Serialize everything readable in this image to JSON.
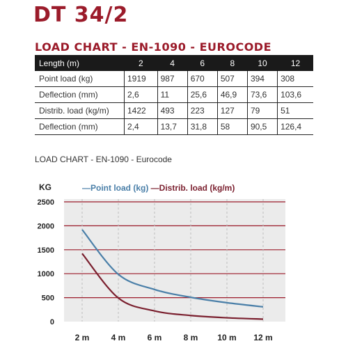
{
  "header": {
    "title": "DT 34/2",
    "subtitle": "LOAD CHART - EN-1090 - EUROCODE"
  },
  "table": {
    "columns": [
      "Length (m)",
      "2",
      "4",
      "6",
      "8",
      "10",
      "12"
    ],
    "rows": [
      [
        "Point load (kg)",
        "1919",
        "987",
        "670",
        "507",
        "394",
        "308"
      ],
      [
        "Deflection (mm)",
        "2,6",
        "11",
        "25,6",
        "46,9",
        "73,6",
        "103,6"
      ],
      [
        "Distrib. load (kg/m)",
        "1422",
        "493",
        "223",
        "127",
        "79",
        "51"
      ],
      [
        "Deflection (mm)",
        "2,4",
        "13,7",
        "31,8",
        "58",
        "90,5",
        "126,4"
      ]
    ]
  },
  "chart_caption": "LOAD CHART - EN-1090 - Eurocode",
  "colors": {
    "brand": "#9b1b2a",
    "point_series": "#4a7fa8",
    "distrib_series": "#7a1f2e",
    "gridline": "#9b1b2a",
    "plot_bg": "#ebebeb"
  },
  "chart_data": {
    "type": "line",
    "title": "",
    "ylabel": "KG",
    "xlabel": "",
    "x": [
      2,
      4,
      6,
      8,
      10,
      12
    ],
    "xticks": [
      "2 m",
      "4 m",
      "6 m",
      "8 m",
      "10 m",
      "12 m"
    ],
    "yticks": [
      "2500",
      "2000",
      "1500",
      "1000",
      "500",
      "0"
    ],
    "ylim": [
      0,
      2500
    ],
    "xlim": [
      2,
      12
    ],
    "grid": true,
    "legend_position": "top",
    "legend_separator": "—",
    "series": [
      {
        "name": "Point load (kg)",
        "values": [
          1919,
          987,
          670,
          507,
          394,
          308
        ]
      },
      {
        "name": "Distrib. load (kg/m)",
        "values": [
          1422,
          493,
          223,
          127,
          79,
          51
        ]
      }
    ]
  }
}
